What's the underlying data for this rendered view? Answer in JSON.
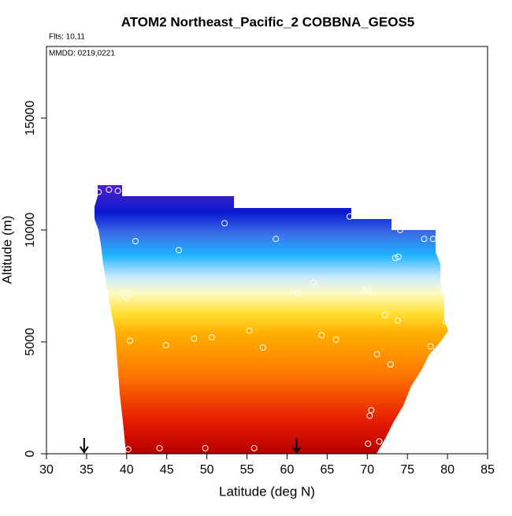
{
  "chart_data": {
    "type": "scatter",
    "title": "ATOM2 Northeast_Pacific_2 COBBNA_GEOS5",
    "annotations": [
      "Flts: 10,11",
      "MMDD: 0219,0221"
    ],
    "x_label": "Latitude (deg N)",
    "y_label": "Altitude (m)",
    "xlim": [
      30,
      85
    ],
    "xticks": [
      30,
      35,
      40,
      45,
      50,
      55,
      60,
      65,
      70,
      75,
      80,
      85
    ],
    "ylim": [
      0,
      18200
    ],
    "yticks": [
      0,
      5000,
      10000,
      15000
    ],
    "color": "#ffffff",
    "x": [
      40.2,
      44.1,
      49.8,
      55.9,
      70.1,
      71.5,
      70.5,
      70.3,
      72.9,
      71.2,
      77.9,
      73.8,
      79.8,
      72.2,
      69.9,
      61.3,
      63.3,
      64.3,
      66.1,
      57.0,
      55.3,
      50.6,
      48.4,
      44.9,
      40.4,
      39.9,
      46.5,
      41.1,
      52.2,
      58.6,
      67.8,
      74.1,
      77.1,
      78.2,
      73.5,
      73.9,
      36.5,
      37.8,
      38.9,
      35.3
    ],
    "values": [
      200,
      250,
      250,
      250,
      450,
      550,
      1950,
      1700,
      4000,
      4450,
      4800,
      5950,
      5900,
      6200,
      7300,
      7200,
      7650,
      5300,
      5100,
      4750,
      5500,
      5200,
      5150,
      4850,
      5050,
      7000,
      9100,
      9500,
      10300,
      9600,
      10600,
      10000,
      9600,
      9600,
      8750,
      8800,
      11700,
      11800,
      11750,
      10900
    ],
    "markers_x": [
      34.7,
      61.2
    ]
  }
}
